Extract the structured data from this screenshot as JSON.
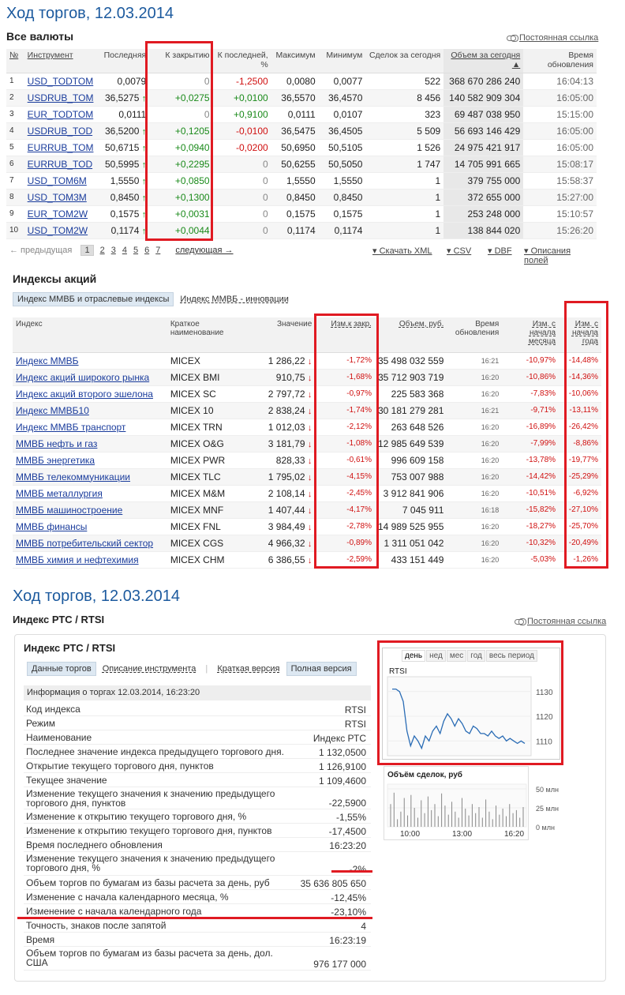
{
  "title1": "Ход торгов, 12.03.2014",
  "currencies_header": "Все валюты",
  "permalink": "Постоянная ссылка",
  "cur_table": {
    "headers": [
      "№",
      "Инструмент",
      "Последняя",
      "К закрытию",
      "К последней, %",
      "Максимум",
      "Минимум",
      "Сделок за сегодня",
      "Объем за сегодня ▲",
      "Время обновления"
    ],
    "rows": [
      {
        "n": "1",
        "inst": "USD_TODTOM",
        "last": "0,0079",
        "arrow": "",
        "close": "0",
        "closecls": "gry",
        "pct": "-1,2500",
        "pctcls": "red",
        "max": "0,0080",
        "min": "0,0077",
        "deals": "522",
        "vol": "368 670 286 240",
        "time": "16:04:13"
      },
      {
        "n": "2",
        "inst": "USDRUB_TOM",
        "last": "36,5275",
        "arrow": "↑",
        "close": "+0,0275",
        "closecls": "grn",
        "pct": "+0,0100",
        "pctcls": "grn",
        "max": "36,5570",
        "min": "36,4570",
        "deals": "8 456",
        "vol": "140 582 909 304",
        "time": "16:05:00"
      },
      {
        "n": "3",
        "inst": "EUR_TODTOM",
        "last": "0,0111",
        "arrow": "",
        "close": "0",
        "closecls": "gry",
        "pct": "+0,9100",
        "pctcls": "grn",
        "max": "0,0111",
        "min": "0,0107",
        "deals": "323",
        "vol": "69 487 038 950",
        "time": "15:15:00"
      },
      {
        "n": "4",
        "inst": "USDRUB_TOD",
        "last": "36,5200",
        "arrow": "↑",
        "close": "+0,1205",
        "closecls": "grn",
        "pct": "-0,0100",
        "pctcls": "red",
        "max": "36,5475",
        "min": "36,4505",
        "deals": "5 509",
        "vol": "56 693 146 429",
        "time": "16:05:00"
      },
      {
        "n": "5",
        "inst": "EURRUB_TOM",
        "last": "50,6715",
        "arrow": "↑",
        "close": "+0,0940",
        "closecls": "grn",
        "pct": "-0,0200",
        "pctcls": "red",
        "max": "50,6950",
        "min": "50,5105",
        "deals": "1 526",
        "vol": "24 975 421 917",
        "time": "16:05:00"
      },
      {
        "n": "6",
        "inst": "EURRUB_TOD",
        "last": "50,5995",
        "arrow": "↑",
        "close": "+0,2295",
        "closecls": "grn",
        "pct": "0",
        "pctcls": "gry",
        "max": "50,6255",
        "min": "50,5050",
        "deals": "1 747",
        "vol": "14 705 991 665",
        "time": "15:08:17"
      },
      {
        "n": "7",
        "inst": "USD_TOM6M",
        "last": "1,5550",
        "arrow": "↑",
        "close": "+0,0850",
        "closecls": "grn",
        "pct": "0",
        "pctcls": "gry",
        "max": "1,5550",
        "min": "1,5550",
        "deals": "1",
        "vol": "379 755 000",
        "time": "15:58:37"
      },
      {
        "n": "8",
        "inst": "USD_TOM3M",
        "last": "0,8450",
        "arrow": "↑",
        "close": "+0,1300",
        "closecls": "grn",
        "pct": "0",
        "pctcls": "gry",
        "max": "0,8450",
        "min": "0,8450",
        "deals": "1",
        "vol": "372 655 000",
        "time": "15:27:00"
      },
      {
        "n": "9",
        "inst": "EUR_TOM2W",
        "last": "0,1575",
        "arrow": "↑",
        "close": "+0,0031",
        "closecls": "grn",
        "pct": "0",
        "pctcls": "gry",
        "max": "0,1575",
        "min": "0,1575",
        "deals": "1",
        "vol": "253 248 000",
        "time": "15:10:57"
      },
      {
        "n": "10",
        "inst": "USD_TOM2W",
        "last": "0,1174",
        "arrow": "↑",
        "close": "+0,0044",
        "closecls": "grn",
        "pct": "0",
        "pctcls": "gry",
        "max": "0,1174",
        "min": "0,1174",
        "deals": "1",
        "vol": "138 844 020",
        "time": "15:26:20"
      }
    ]
  },
  "pager": {
    "prev": "← предыдущая",
    "pages": [
      "1",
      "2",
      "3",
      "4",
      "5",
      "6",
      "7"
    ],
    "next": "следующая →",
    "xml": "Скачать XML",
    "csv": "CSV",
    "dbf": "DBF",
    "fields": "Описания полей"
  },
  "indices_header": "Индексы акций",
  "idx_tabs": [
    "Индекс ММВБ и отраслевые индексы",
    "Индекс ММВБ - инновации"
  ],
  "idx_table": {
    "headers": [
      "Индекс",
      "Краткое наименование",
      "Значение",
      "Изм.к закр.",
      "Объем, руб.",
      "Время обновления",
      "Изм. с начала месяца",
      "Изм. с начала года"
    ],
    "rows": [
      {
        "name": "Индекс ММВБ",
        "short": "MICEX",
        "val": "1 286,22",
        "chg": "-1,72%",
        "vol": "35 498 032 559",
        "time": "16:21",
        "m": "-10,97%",
        "y": "-14,48%"
      },
      {
        "name": "Индекс акций широкого рынка",
        "short": "MICEX BMI",
        "val": "910,75",
        "chg": "-1,68%",
        "vol": "35 712 903 719",
        "time": "16:20",
        "m": "-10,86%",
        "y": "-14,36%"
      },
      {
        "name": "Индекс акций второго эшелона",
        "short": "MICEX SC",
        "val": "2 797,72",
        "chg": "-0,97%",
        "vol": "225 583 368",
        "time": "16:20",
        "m": "-7,83%",
        "y": "-10,06%"
      },
      {
        "name": "Индекс ММВБ10",
        "short": "MICEX 10",
        "val": "2 838,24",
        "chg": "-1,74%",
        "vol": "30 181 279 281",
        "time": "16:21",
        "m": "-9,71%",
        "y": "-13,11%"
      },
      {
        "name": "Индекс ММВБ транспорт",
        "short": "MICEX TRN",
        "val": "1 012,03",
        "chg": "-2,12%",
        "vol": "263 648 526",
        "time": "16:20",
        "m": "-16,89%",
        "y": "-26,42%"
      },
      {
        "name": "ММВБ нефть и газ",
        "short": "MICEX O&G",
        "val": "3 181,79",
        "chg": "-1,08%",
        "vol": "12 985 649 539",
        "time": "16:20",
        "m": "-7,99%",
        "y": "-8,86%"
      },
      {
        "name": "ММВБ энергетика",
        "short": "MICEX PWR",
        "val": "828,33",
        "chg": "-0,61%",
        "vol": "996 609 158",
        "time": "16:20",
        "m": "-13,78%",
        "y": "-19,77%"
      },
      {
        "name": "ММВБ телекоммуникации",
        "short": "MICEX TLC",
        "val": "1 795,02",
        "chg": "-4,15%",
        "vol": "753 007 988",
        "time": "16:20",
        "m": "-14,42%",
        "y": "-25,29%"
      },
      {
        "name": "ММВБ металлургия",
        "short": "MICEX M&M",
        "val": "2 108,14",
        "chg": "-2,45%",
        "vol": "3 912 841 906",
        "time": "16:20",
        "m": "-10,51%",
        "y": "-6,92%"
      },
      {
        "name": "ММВБ машиностроение",
        "short": "MICEX MNF",
        "val": "1 407,44",
        "chg": "-4,17%",
        "vol": "7 045 911",
        "time": "16:18",
        "m": "-15,82%",
        "y": "-27,10%"
      },
      {
        "name": "ММВБ финансы",
        "short": "MICEX FNL",
        "val": "3 984,49",
        "chg": "-2,78%",
        "vol": "14 989 525 955",
        "time": "16:20",
        "m": "-18,27%",
        "y": "-25,70%"
      },
      {
        "name": "ММВБ потребительский сектор",
        "short": "MICEX CGS",
        "val": "4 966,32",
        "chg": "-0,89%",
        "vol": "1 311 051 042",
        "time": "16:20",
        "m": "-10,32%",
        "y": "-20,49%"
      },
      {
        "name": "ММВБ химия и нефтехимия",
        "short": "MICEX CHM",
        "val": "6 386,55",
        "chg": "-2,59%",
        "vol": "433 151 449",
        "time": "16:20",
        "m": "-5,03%",
        "y": "-1,26%"
      }
    ]
  },
  "title2": "Ход торгов, 12.03.2014",
  "rts_header": "Индекс РТС / RTSI",
  "panel_title": "Индекс РТС / RTSI",
  "panel_tabs": [
    "Данные торгов",
    "Описание инструмента",
    "Краткая версия",
    "Полная версия"
  ],
  "info_header": "Информация о торгах 12.03.2014, 16:23:20",
  "info_rows": [
    {
      "k": "Код индекса",
      "v": "RTSI"
    },
    {
      "k": "Режим",
      "v": "RTSI"
    },
    {
      "k": "Наименование",
      "v": "Индекс РТС"
    },
    {
      "k": "Последнее значение индекса предыдущего торгового дня.",
      "v": "1 132,0500"
    },
    {
      "k": "Открытие текущего торгового дня, пунктов",
      "v": "1 126,9100"
    },
    {
      "k": "Текущее значение",
      "v": "1 109,4600"
    },
    {
      "k": "Изменение текущего значения к значению предыдущего торгового дня, пунктов",
      "v": "-22,5900"
    },
    {
      "k": "Изменение к открытию текущего торгового дня, %",
      "v": "-1,55%"
    },
    {
      "k": "Изменение к открытию текущего торгового дня, пунктов",
      "v": "-17,4500"
    },
    {
      "k": "Время последнего обновления",
      "v": "16:23:20"
    },
    {
      "k": "Изменение текущего значения к значению предыдущего торгового дня, %",
      "v": "-2%"
    },
    {
      "k": "Объем торгов по бумагам из базы расчета за день, руб",
      "v": "35 636 805 650"
    },
    {
      "k": "Изменение с начала календарного месяца, %",
      "v": "-12,45%"
    },
    {
      "k": "Изменение с начала календарного года",
      "v": "-23,10%"
    },
    {
      "k": "Точность, знаков после запятой",
      "v": "4"
    },
    {
      "k": "Время",
      "v": "16:23:19"
    },
    {
      "k": "Объем торгов по бумагам из базы расчета за день, дол. США",
      "v": "976 177 000"
    }
  ],
  "chart": {
    "periods": [
      "день",
      "нед",
      "мес",
      "год",
      "весь период"
    ],
    "label": "RTSI",
    "yticks": [
      "1130",
      "1120",
      "1110"
    ],
    "vol_title": "Объём сделок, руб",
    "vol_ticks": [
      "50 млн",
      "25 млн",
      "0 млн"
    ],
    "xticks": [
      "10:00",
      "13:00",
      "16:20"
    ]
  },
  "chart_data": {
    "type": "line",
    "series": [
      {
        "name": "RTSI",
        "values": [
          1131,
          1131,
          1130,
          1126,
          1114,
          1108,
          1112,
          1110,
          1107,
          1112,
          1110,
          1114,
          1116,
          1113,
          1118,
          1121,
          1119,
          1116,
          1119,
          1117,
          1114,
          1113,
          1116,
          1115,
          1113,
          1113,
          1112,
          1114,
          1112,
          1111,
          1112,
          1110,
          1111,
          1110,
          1109,
          1110,
          1109
        ]
      }
    ],
    "volume": [
      30,
      45,
      10,
      20,
      38,
      15,
      42,
      25,
      12,
      35,
      18,
      40,
      22,
      30,
      14,
      44,
      28,
      16,
      33,
      20,
      12,
      38,
      24,
      15,
      30,
      18,
      26,
      12,
      36,
      20,
      10,
      28,
      16,
      24,
      14,
      30,
      18,
      22,
      12,
      26
    ],
    "ylim": [
      1104,
      1136
    ]
  }
}
